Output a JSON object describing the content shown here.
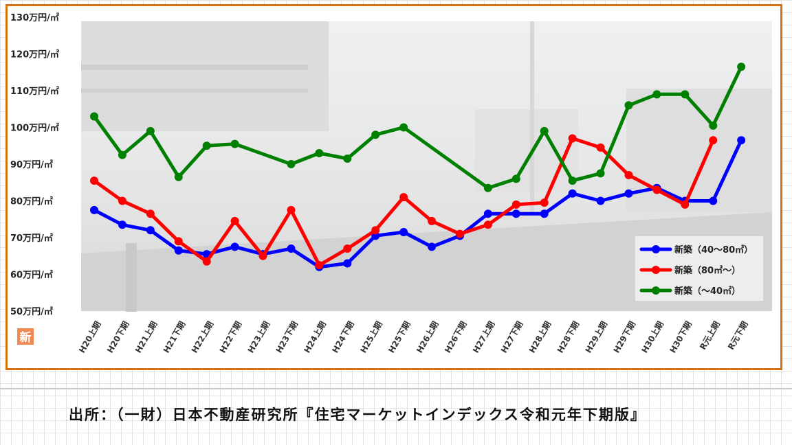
{
  "chart_data": {
    "type": "line",
    "title": "",
    "xlabel": "",
    "ylabel": "",
    "ylim": [
      50,
      130
    ],
    "yticks": [
      50,
      60,
      70,
      80,
      90,
      100,
      110,
      120,
      130
    ],
    "ytick_labels": [
      "50万円/㎡",
      "60万円/㎡",
      "70万円/㎡",
      "80万円/㎡",
      "90万円/㎡",
      "100万円/㎡",
      "110万円/㎡",
      "120万円/㎡",
      "130万円/㎡"
    ],
    "categories": [
      "H20上期",
      "H20下期",
      "H21上期",
      "H21下期",
      "H22上期",
      "H22下期",
      "H23上期",
      "H23下期",
      "H24上期",
      "H24下期",
      "H25上期",
      "H25下期",
      "H26上期",
      "H26下期",
      "H27上期",
      "H27下期",
      "H28上期",
      "H28下期",
      "H29上期",
      "H29下期",
      "H30上期",
      "H30下期",
      "R元上期",
      "R元下期"
    ],
    "legend_position": "bottom-right",
    "grid": false,
    "series": [
      {
        "name": "新築（40～80㎡）",
        "color": "#0000ff",
        "values": [
          77.5,
          73.5,
          72,
          66.5,
          65.5,
          67.5,
          65.5,
          67,
          62,
          63,
          70.5,
          71.5,
          67.5,
          70.5,
          76.5,
          76.5,
          76.5,
          82,
          80,
          82,
          83.5,
          80,
          80,
          96.5
        ]
      },
      {
        "name": "新築（80㎡～）",
        "color": "#ff0000",
        "values": [
          85.5,
          80,
          76.5,
          69,
          63.5,
          74.5,
          65,
          77.5,
          62.5,
          67,
          72,
          81,
          74.5,
          71,
          73.5,
          79,
          79.5,
          97,
          94.5,
          87,
          83,
          79,
          96.5,
          null
        ]
      },
      {
        "name": "新築（～40㎡）",
        "color": "#008000",
        "values": [
          103,
          92.5,
          99,
          86.5,
          95,
          95.5,
          null,
          90,
          93,
          91.5,
          98,
          100,
          null,
          null,
          83.5,
          86,
          99,
          85.5,
          87.5,
          106,
          109,
          109,
          100.5,
          116.5
        ]
      }
    ]
  },
  "badge_text": "新",
  "caption": "出所：（一財）日本不動産研究所『住宅マーケットインデックス令和元年下期版』"
}
